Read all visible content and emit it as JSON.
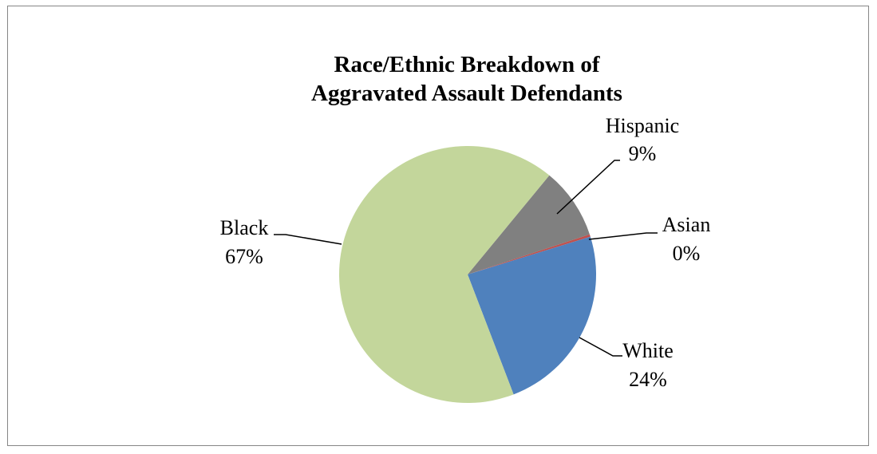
{
  "chart_data": {
    "type": "pie",
    "title": "Race/Ethnic Breakdown of Aggravated Assault Defendants",
    "title_lines": [
      "Race/Ethnic Breakdown of",
      "Aggravated Assault  Defendants"
    ],
    "start_category": "Hispanic",
    "direction": "clockwise",
    "slices": [
      {
        "label": "Hispanic",
        "value": 9,
        "display": "9%",
        "color": "#808080"
      },
      {
        "label": "Asian",
        "value": 0.3,
        "display": "0%",
        "color": "#c0504d"
      },
      {
        "label": "White",
        "value": 24,
        "display": "24%",
        "color": "#4f81bd"
      },
      {
        "label": "Black",
        "value": 67,
        "display": "67%",
        "color": "#c3d69b"
      }
    ],
    "legend": "none",
    "data_labels": "outside with leader lines"
  }
}
